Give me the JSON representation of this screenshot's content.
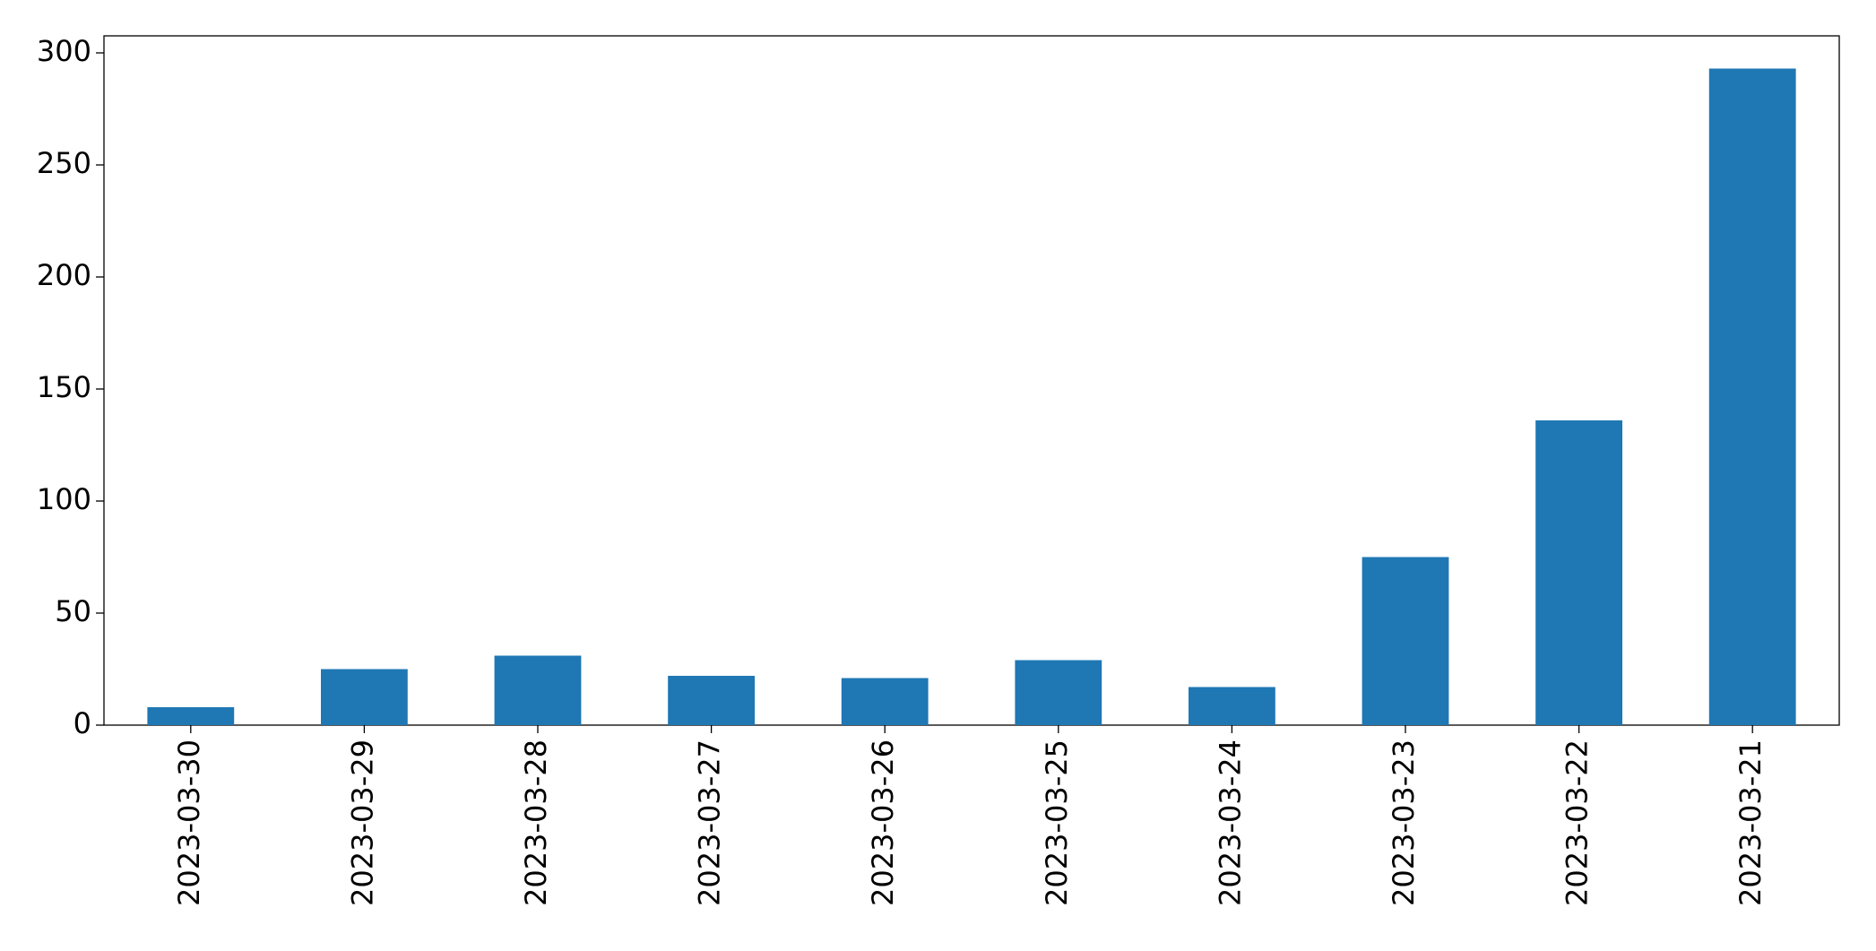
{
  "chart_data": {
    "type": "bar",
    "categories": [
      "2023-03-30",
      "2023-03-29",
      "2023-03-28",
      "2023-03-27",
      "2023-03-26",
      "2023-03-25",
      "2023-03-24",
      "2023-03-23",
      "2023-03-22",
      "2023-03-21"
    ],
    "values": [
      8,
      25,
      31,
      22,
      21,
      29,
      17,
      75,
      136,
      293
    ],
    "color": "#1f77b4",
    "ylim": [
      0,
      307.6
    ],
    "yticks": [
      0,
      50,
      100,
      150,
      200,
      250,
      300
    ],
    "grid": false
  }
}
